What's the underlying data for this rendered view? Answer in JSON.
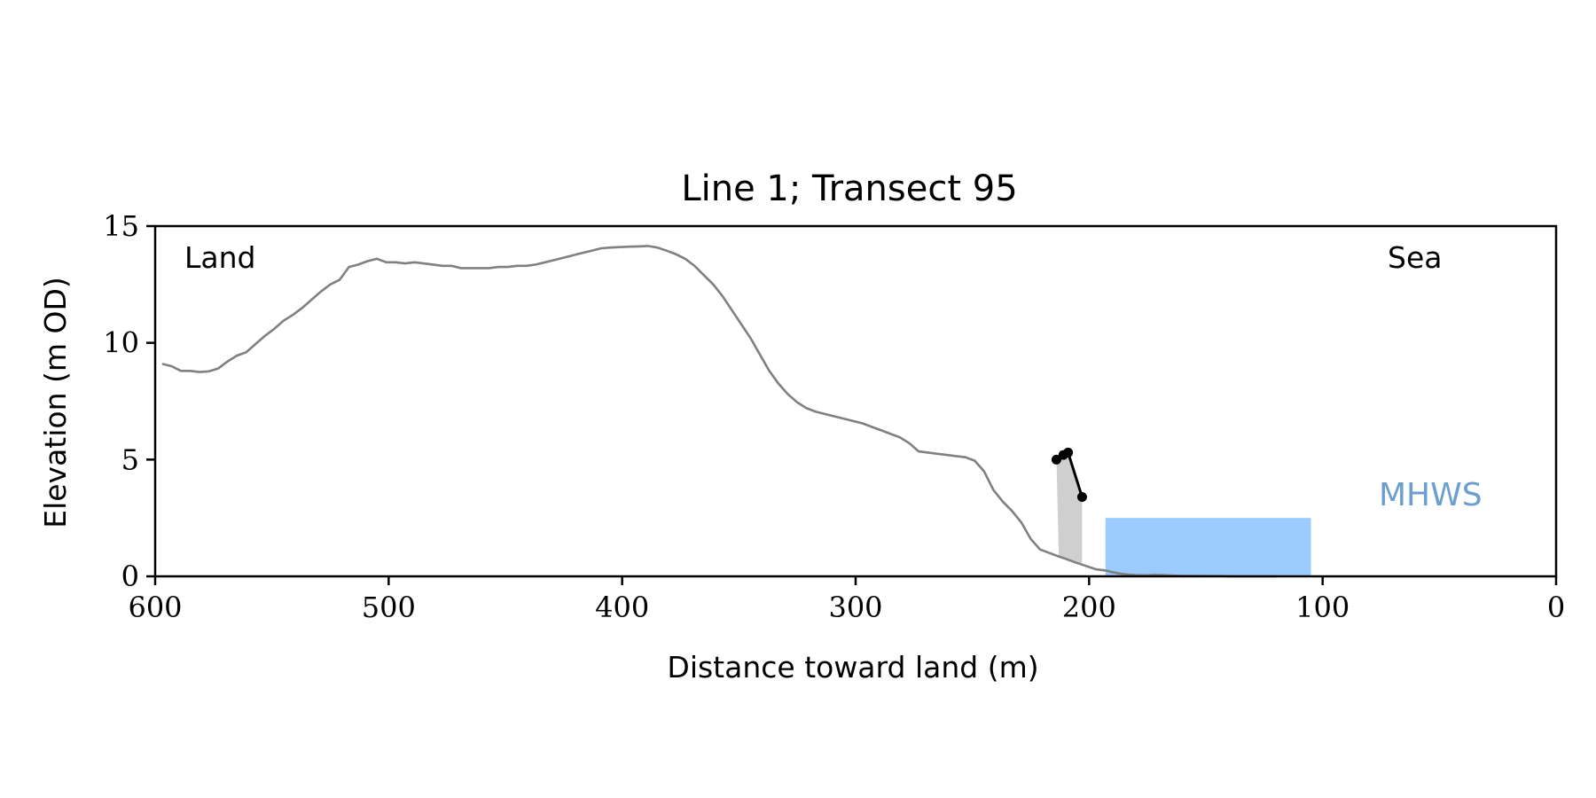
{
  "chart_data": {
    "type": "line",
    "title": "Line 1; Transect 95",
    "xlabel": "Distance toward land (m)",
    "ylabel": "Elevation (m OD)",
    "xlim": [
      600,
      0
    ],
    "ylim": [
      0,
      15
    ],
    "x_ticks": [
      600,
      500,
      400,
      300,
      200,
      100,
      0
    ],
    "y_ticks": [
      0,
      5,
      10,
      15
    ],
    "grid": false,
    "annotations": {
      "land": "Land",
      "sea": "Sea",
      "mhws": "MHWS"
    },
    "colors": {
      "profile": "#808080",
      "mhws_fill": "#9ccbff",
      "mhws_text": "#6c9fcf",
      "highlight": "#000000",
      "highlight_fill": "#cfcfcf"
    },
    "mhws_region": {
      "x_from": 193,
      "x_to": 105,
      "y_from": 0,
      "y_to": 2.5
    },
    "series": [
      {
        "x": [
          597,
          593,
          589,
          585,
          581,
          577,
          573,
          569,
          565,
          561,
          557,
          553,
          549,
          545,
          541,
          537,
          533,
          529,
          525,
          521,
          517,
          513,
          509,
          505,
          501,
          497,
          493,
          489,
          485,
          481,
          477,
          473,
          469,
          465,
          461,
          457,
          453,
          449,
          445,
          441,
          437,
          433,
          429,
          425,
          421,
          417,
          413,
          409,
          405,
          401,
          397,
          393,
          389,
          385,
          381,
          377,
          373,
          369,
          365,
          361,
          357,
          353,
          349,
          345,
          341,
          337,
          333,
          329,
          325,
          321,
          317,
          313,
          309,
          305,
          301,
          297,
          293,
          289,
          285,
          281,
          277,
          273,
          269,
          265,
          261,
          257,
          253,
          249,
          245,
          241,
          237,
          233,
          229,
          225,
          221,
          217,
          213,
          210,
          206,
          203,
          200,
          197,
          193,
          190,
          187,
          184,
          180,
          176,
          172,
          168,
          164,
          160,
          156,
          152,
          148,
          144,
          140,
          136,
          132,
          128,
          124,
          120
        ],
        "y": [
          9.1,
          9.0,
          8.8,
          8.8,
          8.75,
          8.78,
          8.9,
          9.2,
          9.45,
          9.6,
          9.95,
          10.3,
          10.6,
          10.95,
          11.2,
          11.5,
          11.85,
          12.2,
          12.5,
          12.7,
          13.25,
          13.35,
          13.5,
          13.6,
          13.45,
          13.45,
          13.4,
          13.45,
          13.4,
          13.35,
          13.3,
          13.3,
          13.2,
          13.2,
          13.2,
          13.2,
          13.25,
          13.25,
          13.3,
          13.3,
          13.35,
          13.45,
          13.55,
          13.65,
          13.75,
          13.85,
          13.95,
          14.05,
          14.08,
          14.1,
          14.12,
          14.13,
          14.15,
          14.08,
          13.95,
          13.8,
          13.6,
          13.3,
          12.9,
          12.5,
          12.0,
          11.4,
          10.8,
          10.2,
          9.5,
          8.8,
          8.25,
          7.8,
          7.45,
          7.2,
          7.05,
          6.95,
          6.85,
          6.75,
          6.65,
          6.55,
          6.4,
          6.25,
          6.1,
          5.95,
          5.7,
          5.35,
          5.3,
          5.25,
          5.2,
          5.15,
          5.1,
          4.95,
          4.5,
          3.7,
          3.2,
          2.8,
          2.3,
          1.6,
          1.15,
          1.0,
          0.85,
          0.75,
          0.6,
          0.5,
          0.4,
          0.3,
          0.25,
          0.18,
          0.12,
          0.08,
          0.05,
          0.04,
          0.06,
          0.05,
          0.03,
          0.02,
          0.02,
          0.02,
          0.01,
          0.01,
          0.0,
          0.0,
          0.0,
          0.0,
          0.0,
          0.0
        ],
        "stroke": "#808080"
      },
      {
        "x": [
          214,
          211,
          209,
          203
        ],
        "y": [
          5.0,
          5.2,
          5.3,
          3.4
        ],
        "stroke": "#000000",
        "markers": true
      }
    ]
  }
}
